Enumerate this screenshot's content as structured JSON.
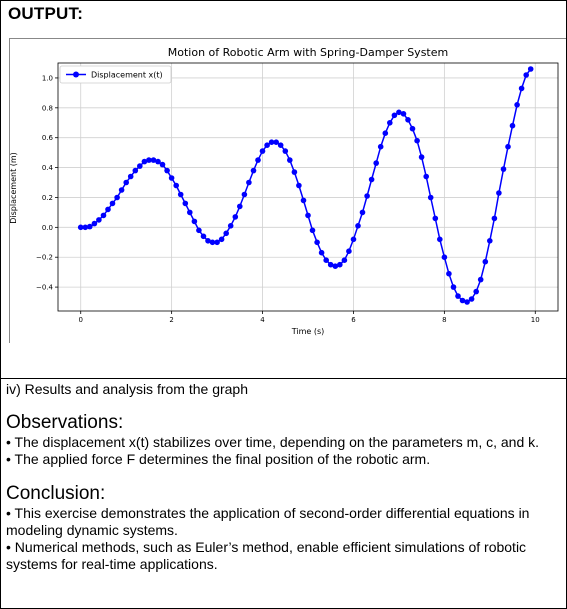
{
  "header": {
    "title": "OUTPUT:"
  },
  "chart_data": {
    "type": "line",
    "title": "Motion of Robotic Arm with Spring-Damper System",
    "xlabel": "Time (s)",
    "ylabel": "Displacement (m)",
    "xlim": [
      -0.5,
      10.5
    ],
    "ylim": [
      -0.56,
      1.1
    ],
    "xticks": [
      0,
      2,
      4,
      6,
      8,
      10
    ],
    "yticks": [
      -0.4,
      -0.2,
      0.0,
      0.2,
      0.4,
      0.6,
      0.8,
      1.0
    ],
    "ytick_labels": [
      "−0.4",
      "−0.2",
      "0.0",
      "0.2",
      "0.4",
      "0.6",
      "0.8",
      "1.0"
    ],
    "grid": true,
    "legend": "top-left",
    "color": "#0000ff",
    "series": [
      {
        "name": "Displacement x(t)",
        "points": [
          [
            0,
            0
          ],
          [
            0.1,
            0
          ],
          [
            0.2,
            0.005
          ],
          [
            0.3,
            0.025
          ],
          [
            0.4,
            0.05
          ],
          [
            0.5,
            0.08
          ],
          [
            0.6,
            0.12
          ],
          [
            0.7,
            0.16
          ],
          [
            0.8,
            0.2
          ],
          [
            0.9,
            0.25
          ],
          [
            1.0,
            0.3
          ],
          [
            1.1,
            0.34
          ],
          [
            1.2,
            0.38
          ],
          [
            1.3,
            0.41
          ],
          [
            1.4,
            0.44
          ],
          [
            1.5,
            0.45
          ],
          [
            1.6,
            0.45
          ],
          [
            1.7,
            0.44
          ],
          [
            1.8,
            0.42
          ],
          [
            1.9,
            0.38
          ],
          [
            2.0,
            0.33
          ],
          [
            2.1,
            0.28
          ],
          [
            2.2,
            0.22
          ],
          [
            2.3,
            0.16
          ],
          [
            2.4,
            0.1
          ],
          [
            2.5,
            0.04
          ],
          [
            2.6,
            -0.02
          ],
          [
            2.7,
            -0.06
          ],
          [
            2.8,
            -0.09
          ],
          [
            2.9,
            -0.1
          ],
          [
            3.0,
            -0.1
          ],
          [
            3.1,
            -0.08
          ],
          [
            3.2,
            -0.04
          ],
          [
            3.3,
            0.01
          ],
          [
            3.4,
            0.07
          ],
          [
            3.5,
            0.14
          ],
          [
            3.6,
            0.22
          ],
          [
            3.7,
            0.3
          ],
          [
            3.8,
            0.38
          ],
          [
            3.9,
            0.45
          ],
          [
            4.0,
            0.51
          ],
          [
            4.1,
            0.55
          ],
          [
            4.2,
            0.57
          ],
          [
            4.3,
            0.57
          ],
          [
            4.4,
            0.55
          ],
          [
            4.5,
            0.51
          ],
          [
            4.6,
            0.45
          ],
          [
            4.7,
            0.37
          ],
          [
            4.8,
            0.28
          ],
          [
            4.9,
            0.18
          ],
          [
            5.0,
            0.08
          ],
          [
            5.1,
            -0.02
          ],
          [
            5.2,
            -0.1
          ],
          [
            5.3,
            -0.17
          ],
          [
            5.4,
            -0.22
          ],
          [
            5.5,
            -0.25
          ],
          [
            5.6,
            -0.26
          ],
          [
            5.7,
            -0.25
          ],
          [
            5.8,
            -0.22
          ],
          [
            5.9,
            -0.16
          ],
          [
            6.0,
            -0.08
          ],
          [
            6.1,
            0.01
          ],
          [
            6.2,
            0.1
          ],
          [
            6.3,
            0.21
          ],
          [
            6.4,
            0.32
          ],
          [
            6.5,
            0.43
          ],
          [
            6.6,
            0.54
          ],
          [
            6.7,
            0.63
          ],
          [
            6.8,
            0.7
          ],
          [
            6.9,
            0.75
          ],
          [
            7.0,
            0.77
          ],
          [
            7.1,
            0.76
          ],
          [
            7.2,
            0.72
          ],
          [
            7.3,
            0.66
          ],
          [
            7.4,
            0.58
          ],
          [
            7.5,
            0.47
          ],
          [
            7.6,
            0.34
          ],
          [
            7.7,
            0.2
          ],
          [
            7.8,
            0.06
          ],
          [
            7.9,
            -0.08
          ],
          [
            8.0,
            -0.2
          ],
          [
            8.1,
            -0.31
          ],
          [
            8.2,
            -0.4
          ],
          [
            8.3,
            -0.46
          ],
          [
            8.4,
            -0.49
          ],
          [
            8.5,
            -0.5
          ],
          [
            8.6,
            -0.48
          ],
          [
            8.7,
            -0.43
          ],
          [
            8.8,
            -0.35
          ],
          [
            8.9,
            -0.23
          ],
          [
            9.0,
            -0.09
          ],
          [
            9.1,
            0.06
          ],
          [
            9.2,
            0.23
          ],
          [
            9.3,
            0.39
          ],
          [
            9.4,
            0.54
          ],
          [
            9.5,
            0.68
          ],
          [
            9.6,
            0.82
          ],
          [
            9.7,
            0.93
          ],
          [
            9.8,
            1.02
          ],
          [
            9.9,
            1.06
          ]
        ]
      }
    ]
  },
  "results": {
    "heading": "iv) Results and analysis from the graph"
  },
  "observations": {
    "title": "Observations:",
    "bullets": [
      "• The displacement x(t) stabilizes over time, depending on the parameters m, c, and k.",
      "• The applied force F determines the final position of the robotic arm."
    ]
  },
  "conclusion": {
    "title": "Conclusion:",
    "bullets": [
      "• This exercise demonstrates the application of second-order differential equations in modeling dynamic systems.",
      "• Numerical methods, such as Euler’s method, enable efficient simulations of robotic systems for real-time applications."
    ]
  }
}
